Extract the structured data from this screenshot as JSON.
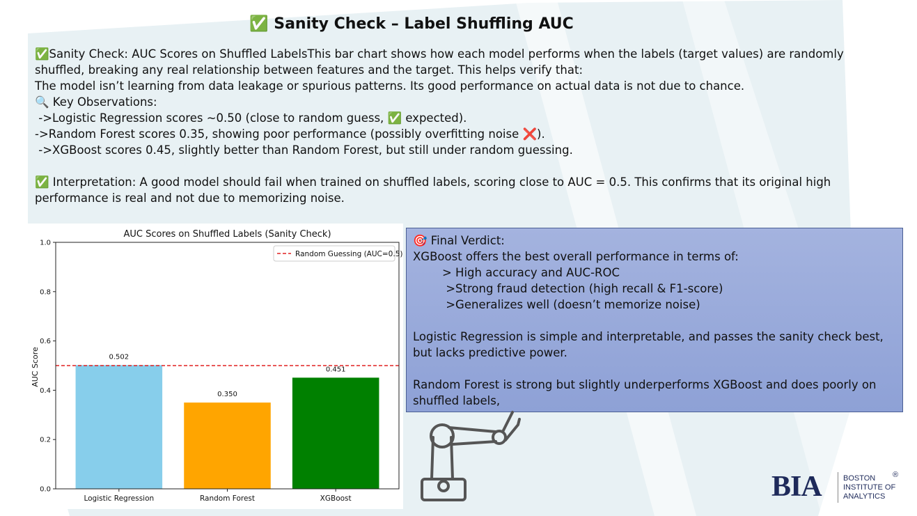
{
  "slide": {
    "title": "✅ Sanity Check – Label Shuffling AUC",
    "body_lines": [
      "✅Sanity Check: AUC Scores on Shuffled LabelsThis bar chart shows how each model performs when the labels (target values) are randomly shuffled, breaking any real relationship between features and the target. This helps verify that:",
      "The model isn’t learning from data leakage or spurious patterns. Its good performance on actual data is not due to chance.",
      "🔍 Key Observations:",
      " ->Logistic Regression scores ~0.50 (close to random guess, ✅ expected).",
      "->Random Forest scores 0.35, showing poor performance (possibly overfitting noise ❌).",
      " ->XGBoost scores 0.45, slightly better than Random Forest, but still under random guessing.",
      " ",
      "✅ Interpretation: A good model should fail when trained on shuffled labels, scoring close to AUC = 0.5. This confirms that its original high performance is real and not due to memorizing noise."
    ]
  },
  "verdict": {
    "lines": [
      "🎯 Final Verdict:",
      "XGBoost offers the best overall performance in terms of:",
      "        > High accuracy and AUC-ROC",
      "         >Strong fraud detection (high recall & F1-score)",
      "         >Generalizes well (doesn’t memorize noise)",
      " ",
      "Logistic Regression is simple and interpretable, and passes the sanity check best, but lacks predictive power.",
      " ",
      "Random Forest is strong but slightly underperforms XGBoost and does poorly on shuffled labels,"
    ]
  },
  "logo": {
    "mark": "BIA",
    "name_lines": [
      "BOSTON",
      "INSTITUTE OF",
      "ANALYTICS"
    ],
    "registered": "®"
  },
  "colors": {
    "accent_bg": "#e8f1f4",
    "verdict_bg": "#9aaadb",
    "logo": "#1e2a5a"
  },
  "chart_data": {
    "type": "bar",
    "title": "AUC Scores on Shuffled Labels (Sanity Check)",
    "xlabel": "",
    "ylabel": "AUC Score",
    "categories": [
      "Logistic Regression",
      "Random Forest",
      "XGBoost"
    ],
    "values": [
      0.502,
      0.35,
      0.451
    ],
    "value_labels": [
      "0.502",
      "0.350",
      "0.451"
    ],
    "bar_colors": [
      "#87ceeb",
      "#ffa500",
      "#008000"
    ],
    "ylim": [
      0,
      1.0
    ],
    "yticks": [
      "0.0",
      "0.2",
      "0.4",
      "0.6",
      "0.8",
      "1.0"
    ],
    "ytick_values": [
      0,
      0.2,
      0.4,
      0.6,
      0.8,
      1.0
    ],
    "reference_line": {
      "value": 0.5,
      "color": "#e02020",
      "style": "dashed",
      "label": "Random Guessing (AUC=0.5)"
    },
    "legend_position": "top-right",
    "grid": false
  }
}
